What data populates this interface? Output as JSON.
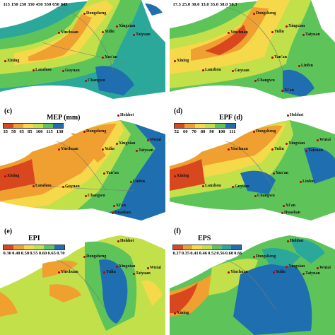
{
  "panels": {
    "a": {
      "label": "",
      "legend_ticks": [
        "115",
        "150",
        "250",
        "350",
        "450",
        "550",
        "650",
        "845"
      ],
      "legend_colors": [
        "#d9471f",
        "#f0a030",
        "#f6d94a",
        "#c2e04a",
        "#5ec45a",
        "#2ca89a",
        "#1f6fb0"
      ],
      "cities": [
        "Dongsheng",
        "Yinchuan",
        "Yulin",
        "Xingxian",
        "Taiyuan",
        "Yan'an",
        "Xining",
        "Lanzhou",
        "Guyuan",
        "Changwu"
      ]
    },
    "b": {
      "label": "",
      "legend_ticks": [
        "17.3",
        "25.0",
        "30.0",
        "33.0",
        "35.0",
        "38.0",
        "50.3"
      ],
      "legend_colors": [
        "#d9471f",
        "#f0a030",
        "#f6d94a",
        "#c2e04a",
        "#5ec45a",
        "#1f6fb0"
      ],
      "cities": [
        "Dongsheng",
        "Yinchuan",
        "Yulin",
        "Xingxian",
        "Taiyuan",
        "Yan'an",
        "Xining",
        "Lanzhou",
        "Guyuan",
        "Linfen",
        "Changwu",
        "Xi'an"
      ]
    },
    "c": {
      "label": "(c)",
      "title": "MEP (mm)",
      "legend_ticks": [
        "35",
        "50",
        "65",
        "85",
        "100",
        "115",
        "138"
      ],
      "legend_colors": [
        "#d9471f",
        "#f0a030",
        "#f6d94a",
        "#c2e04a",
        "#5ec45a",
        "#1f6fb0"
      ],
      "cities": [
        "Hohhot",
        "Dongsheng",
        "Yinchuan",
        "Yulin",
        "Xingxian",
        "Taiyuan",
        "Wutai",
        "Yan'an",
        "Xining",
        "Lanzhou",
        "Guyuan",
        "Linfen",
        "Changwu",
        "Xi'an",
        "Huashan"
      ]
    },
    "d": {
      "label": "(d)",
      "title": "EPF (d)",
      "legend_ticks": [
        "52",
        "60",
        "70",
        "80",
        "90",
        "100",
        "111"
      ],
      "legend_colors": [
        "#d9471f",
        "#f0a030",
        "#f6d94a",
        "#c2e04a",
        "#5ec45a",
        "#1f6fb0"
      ],
      "cities": [
        "Hohhot",
        "Dongsheng",
        "Yinchuan",
        "Yulin",
        "Xingxian",
        "Taiyuan",
        "Wutai",
        "Yan'an",
        "Xining",
        "Lanzhou",
        "Guyuan",
        "Linfen",
        "Changwu",
        "Xi'an",
        "Huashan"
      ]
    },
    "e": {
      "label": "(e)",
      "title": "EPI",
      "legend_ticks": [
        "0.30",
        "0.40",
        "0.50",
        "0.55",
        "0.60",
        "0.65",
        "0.70"
      ],
      "legend_colors": [
        "#d9471f",
        "#f0a030",
        "#f6d94a",
        "#c2e04a",
        "#5ec45a",
        "#1f6fb0"
      ],
      "cities": [
        "Hohhot",
        "Dongsheng",
        "Yinchuan",
        "Yulin",
        "Xingxian",
        "Taiyuan",
        "Wutai"
      ]
    },
    "f": {
      "label": "(f)",
      "title": "EPS",
      "legend_ticks": [
        "0.27",
        "0.35",
        "0.41",
        "0.46",
        "0.52",
        "0.56",
        "0.60",
        "0.66"
      ],
      "legend_colors": [
        "#d9471f",
        "#f0a030",
        "#f6d94a",
        "#c2e04a",
        "#5ec45a",
        "#2ca89a",
        "#1f6fb0"
      ],
      "cities": [
        "Hohhot",
        "Dongsheng",
        "Yinchuan",
        "Yulin",
        "Xingxian",
        "Taiyuan",
        "Wutai",
        "Xining"
      ]
    }
  }
}
